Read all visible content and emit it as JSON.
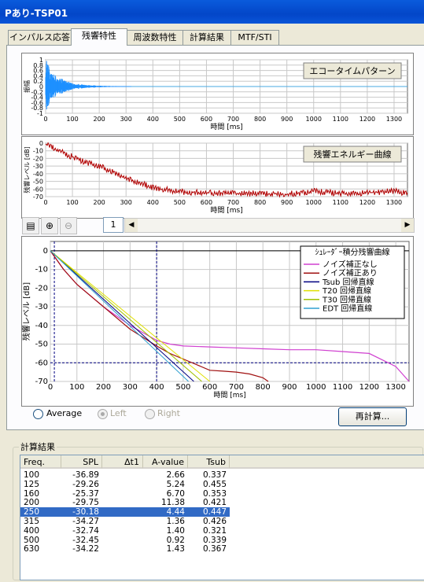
{
  "window": {
    "title": "Pあり-TSP01"
  },
  "tabs": [
    {
      "label": "インパルス応答"
    },
    {
      "label": "残響特性"
    },
    {
      "label": "周波数特性"
    },
    {
      "label": "計算結果"
    },
    {
      "label": "MTF/STI"
    }
  ],
  "echo_chart": {
    "title": "エコータイムパターン",
    "ylabel": "振幅",
    "xlabel": "時間 [ms]",
    "yticks": [
      "1",
      "0.8",
      "0.6",
      "0.4",
      "0.2",
      "0",
      "-0.2",
      "-0.4",
      "-0.6",
      "-0.8",
      "-1"
    ],
    "xticks": [
      "0",
      "100",
      "200",
      "300",
      "400",
      "500",
      "600",
      "700",
      "800",
      "900",
      "1000",
      "1100",
      "1200",
      "1300"
    ]
  },
  "energy_chart": {
    "title": "残響エネルギー曲線",
    "ylabel": "残響レベル [dB]",
    "xlabel": "時間 [ms]",
    "yticks": [
      "0",
      "-10",
      "-20",
      "-30",
      "-40",
      "-50",
      "-60",
      "-70"
    ],
    "xticks": [
      "0",
      "100",
      "200",
      "300",
      "400",
      "500",
      "600",
      "700",
      "800",
      "900",
      "1000",
      "1100",
      "1200",
      "1300"
    ]
  },
  "toolbar": {
    "page": "1"
  },
  "decay_chart": {
    "ylabel": "残響レベル [dB]",
    "xlabel": "時間 [ms]",
    "yticks": [
      "0",
      "-10",
      "-20",
      "-30",
      "-40",
      "-50",
      "-60",
      "-70"
    ],
    "xticks": [
      "0",
      "100",
      "200",
      "300",
      "400",
      "500",
      "600",
      "700",
      "800",
      "900",
      "1000",
      "1100",
      "1200",
      "1300"
    ],
    "legend_title": "ｼｭﾚｰﾀﾞｰ積分残響曲線",
    "legend": [
      {
        "label": "ノイズ補正なし",
        "color": "#d040d0"
      },
      {
        "label": "ノイズ補正あり",
        "color": "#a01010"
      },
      {
        "label": "Tsub 回帰直線",
        "color": "#000080"
      },
      {
        "label": "T20 回帰直線",
        "color": "#e0e000"
      },
      {
        "label": "T30 回帰直線",
        "color": "#a0c000"
      },
      {
        "label": "EDT 回帰直線",
        "color": "#30a0d0"
      }
    ]
  },
  "radios": {
    "average": "Average",
    "left": "Left",
    "right": "Right"
  },
  "buttons": {
    "recalc": "再計算..."
  },
  "results": {
    "title": "計算結果",
    "columns": [
      "Freq.",
      "SPL",
      "Δt1",
      "A-value",
      "Tsub"
    ],
    "rows": [
      {
        "freq": "100",
        "spl": "-36.89",
        "dt1": "",
        "a": "2.66",
        "tsub": "0.337"
      },
      {
        "freq": "125",
        "spl": "-29.26",
        "dt1": "",
        "a": "5.24",
        "tsub": "0.455"
      },
      {
        "freq": "160",
        "spl": "-25.37",
        "dt1": "",
        "a": "6.70",
        "tsub": "0.353"
      },
      {
        "freq": "200",
        "spl": "-29.75",
        "dt1": "",
        "a": "11.38",
        "tsub": "0.421"
      },
      {
        "freq": "250",
        "spl": "-30.18",
        "dt1": "",
        "a": "4.44",
        "tsub": "0.447"
      },
      {
        "freq": "315",
        "spl": "-34.27",
        "dt1": "",
        "a": "1.36",
        "tsub": "0.426"
      },
      {
        "freq": "400",
        "spl": "-32.74",
        "dt1": "",
        "a": "1.40",
        "tsub": "0.321"
      },
      {
        "freq": "500",
        "spl": "-32.45",
        "dt1": "",
        "a": "0.92",
        "tsub": "0.339"
      },
      {
        "freq": "630",
        "spl": "-34.22",
        "dt1": "",
        "a": "1.43",
        "tsub": "0.367"
      }
    ],
    "selected_row": "250"
  },
  "chart_data": [
    {
      "type": "line",
      "title": "エコータイムパターン",
      "xlabel": "時間 [ms]",
      "ylabel": "振幅",
      "xlim": [
        0,
        1350
      ],
      "ylim": [
        -1,
        1
      ],
      "series": [
        {
          "x": [
            0,
            10,
            20,
            40,
            60,
            80,
            100,
            150,
            200,
            300,
            1350
          ],
          "y": [
            1,
            0.9,
            0.5,
            0.4,
            0.3,
            0.2,
            0.12,
            0.06,
            0.03,
            0.01,
            0
          ]
        }
      ],
      "grid": true
    },
    {
      "type": "line",
      "title": "残響エネルギー曲線",
      "xlabel": "時間 [ms]",
      "ylabel": "残響レベル [dB]",
      "xlim": [
        0,
        1350
      ],
      "ylim": [
        -70,
        0
      ],
      "series": [
        {
          "x": [
            0,
            20,
            50,
            100,
            150,
            200,
            250,
            300,
            350,
            400,
            500,
            600,
            700,
            800,
            900,
            1000,
            1100,
            1200,
            1300,
            1350
          ],
          "y": [
            -2,
            -5,
            -10,
            -18,
            -25,
            -30,
            -38,
            -45,
            -52,
            -58,
            -64,
            -65,
            -66,
            -66,
            -67,
            -63,
            -66,
            -65,
            -63,
            -66
          ]
        }
      ],
      "grid": true
    },
    {
      "type": "line",
      "xlabel": "時間 [ms]",
      "ylabel": "残響レベル [dB]",
      "xlim": [
        0,
        1350
      ],
      "ylim": [
        -70,
        5
      ],
      "legend": "top-right",
      "series": [
        {
          "name": "ノイズ補正なし",
          "x": [
            0,
            50,
            100,
            200,
            300,
            400,
            450,
            500,
            600,
            700,
            800,
            900,
            1000,
            1100,
            1200,
            1300,
            1350
          ],
          "y": [
            0,
            -10,
            -18,
            -30,
            -40,
            -48,
            -50,
            -51,
            -51.5,
            -52,
            -52.5,
            -53,
            -53,
            -54,
            -55,
            -62,
            -70
          ]
        },
        {
          "name": "ノイズ補正あり",
          "x": [
            0,
            50,
            100,
            200,
            300,
            400,
            450,
            500,
            550,
            600,
            650,
            700,
            750,
            800,
            820
          ],
          "y": [
            0,
            -10,
            -18,
            -30,
            -42,
            -51,
            -55,
            -58,
            -61,
            -64,
            -64.5,
            -65,
            -66,
            -68,
            -70
          ]
        },
        {
          "name": "Tsub 回帰直線",
          "x": [
            0,
            540
          ],
          "y": [
            0,
            -70
          ]
        },
        {
          "name": "T20 回帰直線",
          "x": [
            0,
            600
          ],
          "y": [
            0,
            -70
          ]
        },
        {
          "name": "T30 回帰直線",
          "x": [
            0,
            570
          ],
          "y": [
            0,
            -70
          ]
        },
        {
          "name": "EDT 回帰直線",
          "x": [
            0,
            520
          ],
          "y": [
            0,
            -70
          ]
        }
      ],
      "grid": true
    }
  ]
}
